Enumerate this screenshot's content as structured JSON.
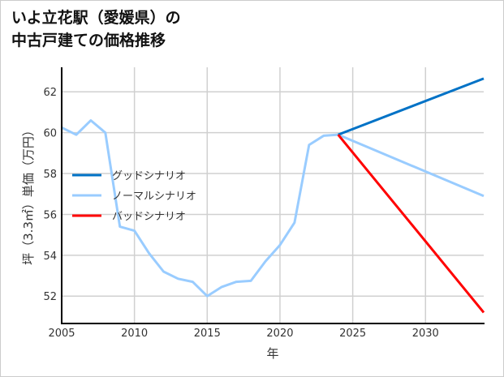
{
  "title_line1": "いよ立花駅（愛媛県）の",
  "title_line2": "中古戸建ての価格推移",
  "chart_data": {
    "type": "line",
    "title": "いよ立花駅（愛媛県）の中古戸建ての価格推移",
    "xlabel": "年",
    "ylabel": "坪（3.3㎡）単価（万円）",
    "xlim": [
      2005,
      2034
    ],
    "ylim": [
      50.7,
      63.2
    ],
    "xticks": [
      2005,
      2010,
      2015,
      2020,
      2025,
      2030
    ],
    "yticks": [
      52,
      54,
      56,
      58,
      60,
      62
    ],
    "grid": true,
    "legend_position": "center-left",
    "series": [
      {
        "name": "グッドシナリオ",
        "color": "#0072c6",
        "x": [
          2024,
          2034
        ],
        "y": [
          59.9,
          62.65
        ]
      },
      {
        "name": "ノーマルシナリオ",
        "color": "#99ccff",
        "x": [
          2005,
          2006,
          2007,
          2008,
          2009,
          2010,
          2011,
          2012,
          2013,
          2014,
          2015,
          2016,
          2017,
          2018,
          2019,
          2020,
          2021,
          2022,
          2023,
          2024,
          2034
        ],
        "y": [
          60.25,
          59.9,
          60.6,
          60.0,
          55.4,
          55.2,
          54.1,
          53.2,
          52.85,
          52.7,
          52.0,
          52.45,
          52.7,
          52.75,
          53.7,
          54.5,
          55.6,
          59.4,
          59.85,
          59.9,
          56.9
        ]
      },
      {
        "name": "バッドシナリオ",
        "color": "#ff0000",
        "x": [
          2024,
          2034
        ],
        "y": [
          59.9,
          51.2
        ]
      }
    ]
  }
}
